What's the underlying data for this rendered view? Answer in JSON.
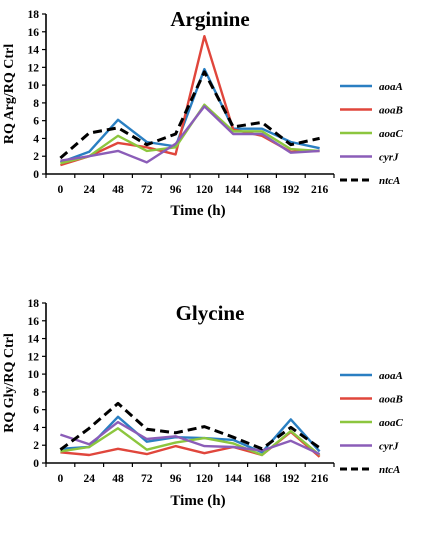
{
  "colors": {
    "aoaA": "#2a7fc2",
    "aoaB": "#e0463c",
    "aoaC": "#8cc63e",
    "cyrJ": "#8b5db8",
    "ntcA": "#000000"
  },
  "chart_data": [
    {
      "type": "line",
      "title": "Arginine",
      "xlabel": "Time (h)",
      "ylabel": "RQ Arg/RQ Ctrl",
      "ylim": [
        0,
        18
      ],
      "yticks": [
        "0",
        "2",
        "4",
        "6",
        "8",
        "10",
        "12",
        "14",
        "16",
        "18"
      ],
      "categories": [
        "0",
        "24",
        "48",
        "72",
        "96",
        "120",
        "144",
        "168",
        "192",
        "216"
      ],
      "legend_position": "right",
      "series": [
        {
          "name": "aoaA",
          "key": "aoaA",
          "dashed": false,
          "values": [
            1.3,
            2.5,
            6.1,
            3.6,
            3.1,
            11.8,
            5.1,
            5.1,
            3.6,
            2.9
          ]
        },
        {
          "name": "aoaB",
          "key": "aoaB",
          "dashed": false,
          "values": [
            1.0,
            2.0,
            3.5,
            3.0,
            2.2,
            15.5,
            5.0,
            4.3,
            2.5,
            2.6
          ]
        },
        {
          "name": "aoaC",
          "key": "aoaC",
          "dashed": false,
          "values": [
            1.2,
            2.0,
            4.3,
            2.6,
            3.0,
            7.8,
            4.8,
            4.8,
            2.8,
            2.6
          ]
        },
        {
          "name": "cyrJ",
          "key": "cyrJ",
          "dashed": false,
          "values": [
            1.5,
            2.0,
            2.6,
            1.3,
            3.4,
            7.6,
            4.5,
            4.5,
            2.4,
            2.6
          ]
        },
        {
          "name": "ntcA",
          "key": "ntcA",
          "dashed": true,
          "values": [
            1.8,
            4.6,
            5.2,
            3.3,
            4.5,
            11.5,
            5.3,
            5.8,
            3.3,
            4.0
          ]
        }
      ]
    },
    {
      "type": "line",
      "title": "Glycine",
      "xlabel": "Time (h)",
      "ylabel": "RQ Gly/RQ Ctrl",
      "ylim": [
        0,
        18
      ],
      "yticks": [
        "0",
        "2",
        "4",
        "6",
        "8",
        "10",
        "12",
        "14",
        "16",
        "18"
      ],
      "categories": [
        "0",
        "24",
        "48",
        "72",
        "96",
        "120",
        "144",
        "168",
        "192",
        "216"
      ],
      "legend_position": "right",
      "series": [
        {
          "name": "aoaA",
          "key": "aoaA",
          "dashed": false,
          "values": [
            1.6,
            1.8,
            5.2,
            2.4,
            2.9,
            2.8,
            2.6,
            1.2,
            4.9,
            1.3
          ]
        },
        {
          "name": "aoaB",
          "key": "aoaB",
          "dashed": false,
          "values": [
            1.2,
            0.9,
            1.6,
            1.0,
            1.9,
            1.1,
            1.8,
            0.9,
            3.5,
            0.7
          ]
        },
        {
          "name": "aoaC",
          "key": "aoaC",
          "dashed": false,
          "values": [
            1.3,
            1.8,
            3.9,
            1.5,
            2.3,
            2.8,
            2.2,
            0.9,
            3.6,
            0.9
          ]
        },
        {
          "name": "cyrJ",
          "key": "cyrJ",
          "dashed": false,
          "values": [
            3.2,
            2.1,
            4.6,
            2.7,
            3.0,
            1.9,
            1.8,
            1.4,
            2.5,
            1.0
          ]
        },
        {
          "name": "ntcA",
          "key": "ntcA",
          "dashed": true,
          "values": [
            1.5,
            3.9,
            6.7,
            3.8,
            3.4,
            4.1,
            2.9,
            1.6,
            4.0,
            1.7
          ]
        }
      ]
    }
  ]
}
